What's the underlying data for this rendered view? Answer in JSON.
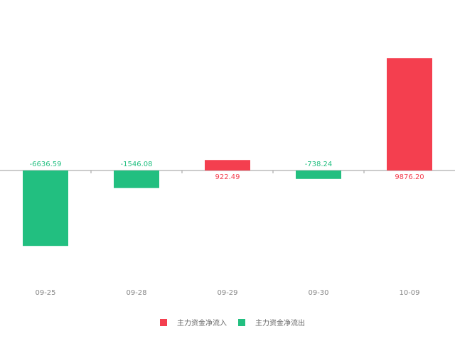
{
  "chart_data": {
    "type": "bar",
    "categories": [
      "09-25",
      "09-28",
      "09-29",
      "09-30",
      "10-09"
    ],
    "values": [
      -6636.59,
      -1546.08,
      922.49,
      -738.24,
      9876.2
    ],
    "value_labels": [
      "-6636.59",
      "-1546.08",
      "922.49",
      "-738.24",
      "9876.20"
    ],
    "legend": [
      {
        "name": "主力资金净流入",
        "color": "#f43f4f"
      },
      {
        "name": "主力资金净流出",
        "color": "#22bf80"
      }
    ],
    "ylim": [
      -10000,
      10000
    ]
  }
}
